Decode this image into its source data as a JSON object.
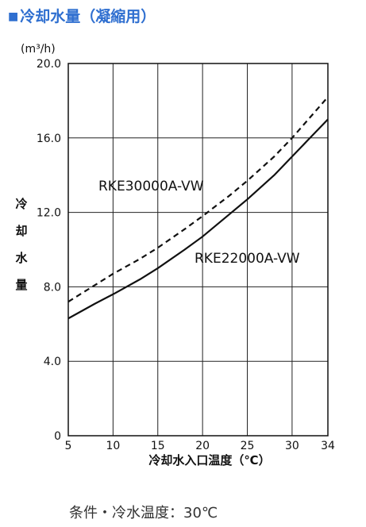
{
  "header": {
    "marker": "■",
    "title": "冷却水量（凝縮用）"
  },
  "chart_data": {
    "type": "line",
    "unit_label": "(m³/h)",
    "xlabel": "冷却水入口温度（℃）",
    "ylabel": "冷却水量",
    "xlim": [
      5,
      34
    ],
    "ylim": [
      0,
      20
    ],
    "x_ticks": [
      5,
      10,
      15,
      20,
      25,
      30,
      34
    ],
    "y_ticks": [
      0,
      4.0,
      8.0,
      12.0,
      16.0,
      20.0
    ],
    "x_tick_labels": [
      "5",
      "10",
      "15",
      "20",
      "25",
      "30",
      "34"
    ],
    "y_tick_labels": [
      "0",
      "4.0",
      "8.0",
      "12.0",
      "16.0",
      "20.0"
    ],
    "grid": true,
    "series": [
      {
        "name": "RKE30000A-VW",
        "style": "dashed",
        "color": "#111111",
        "x": [
          5,
          8,
          10,
          13,
          15,
          18,
          20,
          23,
          25,
          28,
          30,
          32,
          34
        ],
        "y": [
          7.2,
          8.1,
          8.7,
          9.5,
          10.1,
          11.1,
          11.8,
          12.9,
          13.7,
          15.0,
          16.0,
          17.1,
          18.2
        ]
      },
      {
        "name": "RKE22000A-VW",
        "style": "solid",
        "color": "#111111",
        "x": [
          5,
          8,
          10,
          13,
          15,
          18,
          20,
          23,
          25,
          28,
          30,
          32,
          34
        ],
        "y": [
          6.3,
          7.1,
          7.6,
          8.4,
          9.0,
          10.0,
          10.7,
          11.9,
          12.7,
          14.0,
          15.0,
          16.0,
          17.0
        ]
      }
    ]
  },
  "footer": {
    "condition": "条件・冷水温度：30℃"
  }
}
